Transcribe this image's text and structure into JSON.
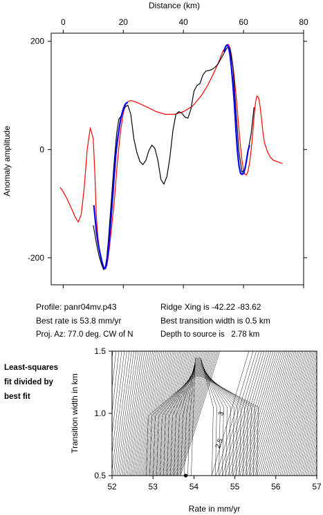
{
  "chart_data": [
    {
      "type": "line",
      "title": "",
      "xlabel": "Distance (km)",
      "ylabel": "Anomaly amplitude",
      "xlim": [
        -4,
        80
      ],
      "ylim": [
        -250,
        215
      ],
      "x_ticks": [
        "0",
        "20",
        "40",
        "60",
        "80"
      ],
      "y_ticks": [
        "200",
        "0",
        "-200"
      ],
      "series": [
        {
          "color": "#000000",
          "x": [
            10,
            10.5,
            11,
            11.5,
            12,
            12.5,
            13,
            13.5,
            14,
            14.5,
            15,
            16,
            17,
            17.8,
            18.5,
            19.5,
            20.5,
            21.5,
            22.5,
            23.5,
            24.5,
            25.5,
            26.5,
            27.5,
            28.5,
            29.5,
            30.5,
            31.5,
            32.5,
            33.5,
            34.5,
            35.5,
            36.5,
            37.5,
            38.5,
            39.5,
            40.5,
            41.5,
            42.5,
            43.5,
            44.5,
            45.5,
            46.5,
            47.5,
            48.5,
            49.5,
            50.5,
            51.5,
            52.5,
            53.5,
            54.5,
            55.5,
            56.5,
            57.5,
            58.5,
            59.5,
            60.5,
            61.5,
            62.5,
            63.5
          ],
          "values": [
            -140,
            -155,
            -172,
            -186,
            -198,
            -208,
            -216,
            -222,
            -218,
            -200,
            -170,
            -95,
            -20,
            30,
            56,
            64,
            78,
            82,
            65,
            20,
            -5,
            -22,
            -28,
            -20,
            -2,
            8,
            2,
            -20,
            -55,
            -64,
            -50,
            -15,
            35,
            65,
            70,
            67,
            60,
            58,
            75,
            108,
            118,
            122,
            138,
            145,
            146,
            148,
            152,
            158,
            168,
            178,
            188,
            186,
            152,
            70,
            -5,
            -42,
            -36,
            -2,
            28,
            78
          ]
        },
        {
          "color": "#0000ff",
          "x": [
            10.2,
            11,
            11.5,
            12,
            12.5,
            13,
            13.5,
            14,
            14.5,
            15,
            15.5,
            16,
            16.5,
            17,
            17.5,
            18,
            18.5,
            19,
            19.5,
            20,
            20.5,
            21,
            21.5,
            53.5,
            54,
            54.5,
            55,
            55.5,
            56,
            56.5,
            57,
            57.5,
            58,
            58.5,
            59,
            59.5,
            60,
            60.5,
            61,
            61.5,
            62
          ],
          "values": [
            -103,
            -150,
            -170,
            -185,
            -198,
            -210,
            -218,
            -220,
            -210,
            -185,
            -155,
            -120,
            -85,
            -45,
            -10,
            15,
            35,
            52,
            65,
            75,
            82,
            86,
            87,
            180,
            190,
            193,
            190,
            175,
            150,
            118,
            80,
            35,
            -5,
            -30,
            -44,
            -46,
            -44,
            -35,
            -20,
            -2,
            8
          ]
        }
      ]
    },
    {
      "type": "line",
      "x": [
        -1,
        0,
        1,
        2,
        3,
        4,
        5,
        6,
        7,
        8,
        9,
        10,
        10.5,
        11,
        11.5,
        12,
        12.5,
        13,
        13.5,
        14,
        14.5,
        15,
        15.5,
        16,
        17,
        18,
        19,
        20,
        21,
        22,
        23,
        25,
        28,
        31,
        34,
        37,
        40,
        43,
        46,
        48,
        50,
        52,
        53,
        54,
        54.5,
        55,
        55.5,
        56,
        57,
        58,
        58.5,
        59,
        59.5,
        60,
        60.5,
        61,
        61.5,
        62,
        62.5,
        63,
        63.5,
        64,
        64.5,
        65,
        65.5,
        66,
        66.5,
        67,
        68,
        69,
        70,
        71,
        72,
        73
      ],
      "values": [
        -70,
        -78,
        -88,
        -100,
        -112,
        -125,
        -134,
        -120,
        -70,
        0,
        40,
        20,
        -40,
        -120,
        -160,
        -182,
        -196,
        -208,
        -216,
        -220,
        -215,
        -198,
        -175,
        -150,
        -95,
        -25,
        30,
        68,
        86,
        90,
        90,
        86,
        78,
        70,
        65,
        65,
        70,
        80,
        100,
        118,
        140,
        165,
        180,
        190,
        194,
        194,
        188,
        175,
        130,
        70,
        35,
        5,
        -20,
        -38,
        -46,
        -47,
        -40,
        -25,
        -2,
        25,
        60,
        88,
        99,
        96,
        80,
        55,
        30,
        12,
        -5,
        -15,
        -20,
        -22,
        -24,
        -26
      ],
      "color": "#ff0000"
    },
    {
      "type": "heatmap",
      "title": "",
      "xlabel": "Rate in mm/yr",
      "ylabel": "Transition width in km",
      "xlim": [
        52,
        57
      ],
      "ylim": [
        0.5,
        1.5
      ],
      "x_ticks": [
        "52",
        "53",
        "54",
        "55",
        "56",
        "57"
      ],
      "y_ticks": [
        "1.5",
        "1.0",
        "0.5"
      ],
      "contour_labels": [
        {
          "x": 54.65,
          "y": 1.0,
          "text": "3"
        },
        {
          "x": 54.6,
          "y": 0.76,
          "text": "2.5"
        }
      ],
      "best_fit_point": {
        "x": 53.8,
        "y": 0.5
      }
    }
  ],
  "info": {
    "profile": "Profile: panr04mv.p43",
    "ridge": "Ridge Xing is -42.22 -83.62",
    "best_rate": "Best rate is 53.8 mm/yr",
    "best_width": "Best transition width is 0.5 km",
    "proj_az": "Proj. Az: 77.0 deg. CW of N",
    "depth": "Depth to source is   2.78 km"
  },
  "side_label": [
    "Least-squares",
    "fit divided by",
    "best fit"
  ]
}
